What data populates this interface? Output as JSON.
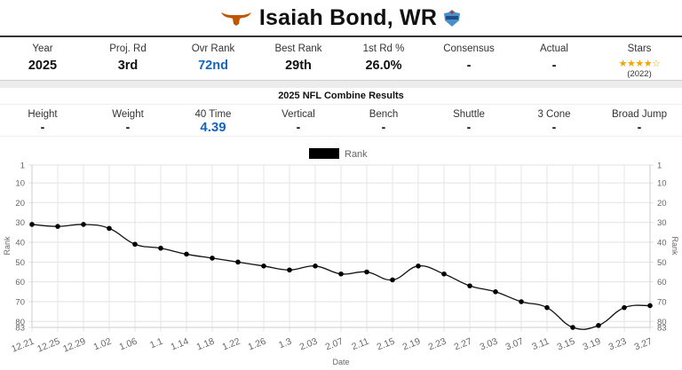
{
  "header": {
    "player": "Isaiah Bond, WR",
    "team_logo_icon": "longhorn-icon",
    "team_color": "#bf5700",
    "combine_badge_icon": "nfl-combine-badge-icon"
  },
  "stats": [
    {
      "label": "Year",
      "value": "2025"
    },
    {
      "label": "Proj. Rd",
      "value": "3rd"
    },
    {
      "label": "Ovr Rank",
      "value": "72nd",
      "highlight": true
    },
    {
      "label": "Best Rank",
      "value": "29th"
    },
    {
      "label": "1st Rd %",
      "value": "26.0%"
    },
    {
      "label": "Consensus",
      "value": "-"
    },
    {
      "label": "Actual",
      "value": "-"
    },
    {
      "label": "Stars",
      "stars_filled": 4,
      "stars_total": 5,
      "sub": "(2022)"
    }
  ],
  "combine": {
    "title": "2025 NFL Combine Results",
    "items": [
      {
        "label": "Height",
        "value": "-"
      },
      {
        "label": "Weight",
        "value": "-"
      },
      {
        "label": "40 Time",
        "value": "4.39",
        "highlight": true
      },
      {
        "label": "Vertical",
        "value": "-"
      },
      {
        "label": "Bench",
        "value": "-"
      },
      {
        "label": "Shuttle",
        "value": "-"
      },
      {
        "label": "3 Cone",
        "value": "-"
      },
      {
        "label": "Broad Jump",
        "value": "-"
      }
    ]
  },
  "colors": {
    "accent_blue": "#1565c0",
    "star": "#f4a300",
    "line": "#111111"
  },
  "chart_data": {
    "type": "line",
    "title": "",
    "legend": [
      "Rank"
    ],
    "legend_position": "top",
    "xlabel": "Date",
    "ylabel": "Rank",
    "ylabel_right": "Rank",
    "y_inverted": true,
    "ylim": [
      1,
      83
    ],
    "y_ticks": [
      1,
      10,
      20,
      30,
      40,
      50,
      60,
      70,
      80,
      83
    ],
    "grid": true,
    "categories": [
      "12.21",
      "12.25",
      "12.29",
      "1.02",
      "1.06",
      "1.1",
      "1.14",
      "1.18",
      "1.22",
      "1.26",
      "1.3",
      "2.03",
      "2.07",
      "2.11",
      "2.15",
      "2.19",
      "2.23",
      "2.27",
      "3.03",
      "3.07",
      "3.11",
      "3.15",
      "3.19",
      "3.23",
      "3.27"
    ],
    "series": [
      {
        "name": "Rank",
        "values": [
          31,
          32,
          31,
          33,
          41,
          43,
          46,
          48,
          50,
          52,
          54,
          52,
          56,
          55,
          59,
          52,
          56,
          62,
          65,
          70,
          73,
          83,
          82,
          73,
          72
        ]
      }
    ]
  }
}
